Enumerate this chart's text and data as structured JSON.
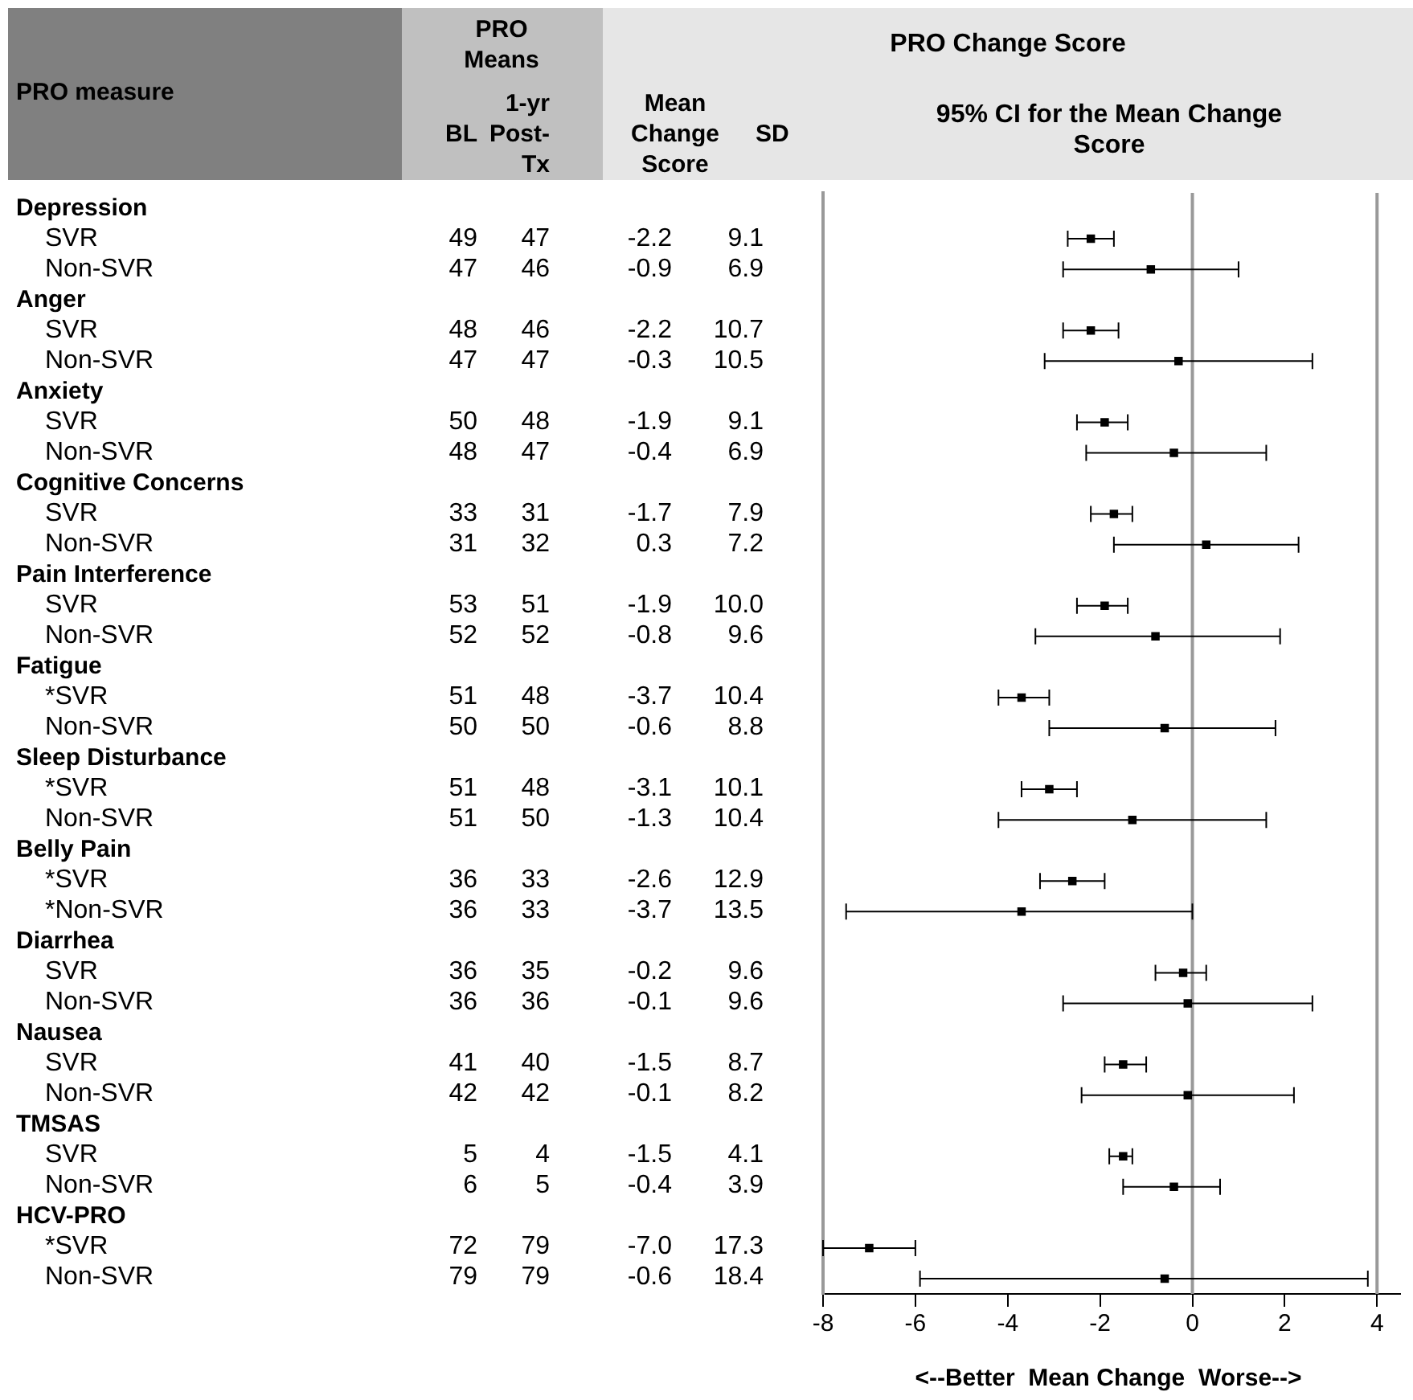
{
  "chart_data": [
    {
      "type": "other",
      "ylabel": "PRO measure",
      "annotations": [
        "PRO Means"
      ],
      "categories": [
        "Depression",
        "SVR",
        "Non-SVR",
        "Anger",
        "SVR",
        "Non-SVR",
        "Anxiety",
        "SVR",
        "Non-SVR",
        "Cognitive Concerns",
        "SVR",
        "Non-SVR",
        "Pain Interference",
        "SVR",
        "Non-SVR",
        "Fatigue",
        "*SVR",
        "Non-SVR",
        "Sleep Disturbance",
        "*SVR",
        "Non-SVR",
        "Belly Pain",
        "*SVR",
        "*Non-SVR",
        "Diarrhea",
        "SVR",
        "Non-SVR",
        "Nausea",
        "SVR",
        "Non-SVR",
        "TMSAS",
        "SVR",
        "Non-SVR",
        "HCV-PRO",
        "*SVR",
        "Non-SVR"
      ],
      "series": [
        {
          "name": "BL",
          "values": [
            null,
            49,
            47,
            null,
            48,
            47,
            null,
            50,
            48,
            null,
            33,
            31,
            null,
            53,
            52,
            null,
            51,
            50,
            null,
            51,
            51,
            null,
            36,
            36,
            null,
            36,
            36,
            null,
            41,
            42,
            null,
            5,
            6,
            null,
            72,
            79
          ],
          "value_labels": [
            null,
            "49",
            "47",
            null,
            "48",
            "47",
            null,
            "50",
            "48",
            null,
            "33",
            "31",
            null,
            "53",
            "52",
            null,
            "51",
            "50",
            null,
            "51",
            "51",
            null,
            "36",
            "36",
            null,
            "36",
            "36",
            null,
            "41",
            "42",
            null,
            "5",
            "6",
            null,
            "72",
            "79"
          ]
        },
        {
          "name": "1-yr Post-Tx",
          "values": [
            null,
            47,
            46,
            null,
            46,
            47,
            null,
            48,
            47,
            null,
            31,
            32,
            null,
            51,
            52,
            null,
            48,
            50,
            null,
            48,
            50,
            null,
            33,
            33,
            null,
            35,
            36,
            null,
            40,
            42,
            null,
            4,
            5,
            null,
            79,
            79
          ],
          "value_labels": [
            null,
            "47",
            "46",
            null,
            "46",
            "47",
            null,
            "48",
            "47",
            null,
            "31",
            "32",
            null,
            "51",
            "52",
            null,
            "48",
            "50",
            null,
            "48",
            "50",
            null,
            "33",
            "33",
            null,
            "35",
            "36",
            null,
            "40",
            "42",
            null,
            "4",
            "5",
            null,
            "79",
            "79"
          ]
        },
        {
          "name": "Mean Change Score",
          "values": [
            null,
            -2.2,
            -0.9,
            null,
            -2.2,
            -0.3,
            null,
            -1.9,
            -0.4,
            null,
            -1.7,
            0.3,
            null,
            -1.9,
            -0.8,
            null,
            -3.7,
            -0.6,
            null,
            -3.1,
            -1.3,
            null,
            -2.6,
            -3.7,
            null,
            -0.2,
            -0.1,
            null,
            -1.5,
            -0.1,
            null,
            -1.5,
            -0.4,
            null,
            -7.0,
            -0.6
          ],
          "value_labels": [
            null,
            "-2.2",
            "-0.9",
            null,
            "-2.2",
            "-0.3",
            null,
            "-1.9",
            "-0.4",
            null,
            "-1.7",
            "0.3",
            null,
            "-1.9",
            "-0.8",
            null,
            "-3.7",
            "-0.6",
            null,
            "-3.1",
            "-1.3",
            null,
            "-2.6",
            "-3.7",
            null,
            "-0.2",
            "-0.1",
            null,
            "-1.5",
            "-0.1",
            null,
            "-1.5",
            "-0.4",
            null,
            "-7.0",
            "-0.6"
          ]
        },
        {
          "name": "SD",
          "values": [
            null,
            9.1,
            6.9,
            null,
            10.7,
            10.5,
            null,
            9.1,
            6.9,
            null,
            7.9,
            7.2,
            null,
            10.0,
            9.6,
            null,
            10.4,
            8.8,
            null,
            10.1,
            10.4,
            null,
            12.9,
            13.5,
            null,
            9.6,
            9.6,
            null,
            8.7,
            8.2,
            null,
            4.1,
            3.9,
            null,
            17.3,
            18.4
          ],
          "value_labels": [
            null,
            "9.1",
            "6.9",
            null,
            "10.7",
            "10.5",
            null,
            "9.1",
            "6.9",
            null,
            "7.9",
            "7.2",
            null,
            "10.0",
            "9.6",
            null,
            "10.4",
            "8.8",
            null,
            "10.1",
            "10.4",
            null,
            "12.9",
            "13.5",
            null,
            "9.6",
            "9.6",
            null,
            "8.7",
            "8.2",
            null,
            "4.1",
            "3.9",
            null,
            "17.3",
            "18.4"
          ]
        }
      ]
    },
    {
      "type": "scatter",
      "orientation": "horizontal",
      "title": "PRO Change Score",
      "subtitle": "95% CI for the Mean Change Score",
      "xlabel": "<--Better  Mean Change  Worse-->",
      "categories": [
        null,
        null,
        null,
        null,
        null,
        null,
        null,
        null,
        null,
        null,
        null,
        null,
        null,
        null,
        null,
        null,
        null,
        null,
        null,
        null,
        null,
        null,
        null,
        null,
        null,
        null,
        null,
        null,
        null,
        null,
        null,
        null,
        null,
        null,
        null,
        null
      ],
      "series": [
        {
          "color": "#000000",
          "values": [
            null,
            -2.2,
            -0.9,
            null,
            -2.2,
            -0.3,
            null,
            -1.9,
            -0.4,
            null,
            -1.7,
            0.3,
            null,
            -1.9,
            -0.8,
            null,
            -3.7,
            -0.6,
            null,
            -3.1,
            -1.3,
            null,
            -2.6,
            -3.7,
            null,
            -0.2,
            -0.1,
            null,
            -1.5,
            -0.1,
            null,
            -1.5,
            -0.4,
            null,
            -7.0,
            -0.6
          ],
          "errors": [
            null,
            [
              -2.7,
              -1.7
            ],
            [
              -2.8,
              1.0
            ],
            null,
            [
              -2.8,
              -1.6
            ],
            [
              -3.2,
              2.6
            ],
            null,
            [
              -2.5,
              -1.4
            ],
            [
              -2.3,
              1.6
            ],
            null,
            [
              -2.2,
              -1.3
            ],
            [
              -1.7,
              2.3
            ],
            null,
            [
              -2.5,
              -1.4
            ],
            [
              -3.4,
              1.9
            ],
            null,
            [
              -4.2,
              -3.1
            ],
            [
              -3.1,
              1.8
            ],
            null,
            [
              -3.7,
              -2.5
            ],
            [
              -4.2,
              1.6
            ],
            null,
            [
              -3.3,
              -1.9
            ],
            [
              -7.5,
              0.0
            ],
            null,
            [
              -0.8,
              0.3
            ],
            [
              -2.8,
              2.6
            ],
            null,
            [
              -1.9,
              -1.0
            ],
            [
              -2.4,
              2.2
            ],
            null,
            [
              -1.8,
              -1.3
            ],
            [
              -1.5,
              0.6
            ],
            null,
            [
              -8.0,
              -6.0
            ],
            [
              -5.9,
              3.8
            ]
          ]
        }
      ],
      "xlim": [
        -8,
        4.5
      ],
      "xticks": [
        -8,
        -6,
        -4,
        -2,
        0,
        2,
        4
      ],
      "ref_lines": [
        {
          "axis": "x",
          "value": 0,
          "color": "#999999"
        },
        {
          "axis": "x",
          "value": 4,
          "color": "#999999"
        }
      ],
      "marker": "square",
      "grid": false,
      "legend": false
    }
  ]
}
